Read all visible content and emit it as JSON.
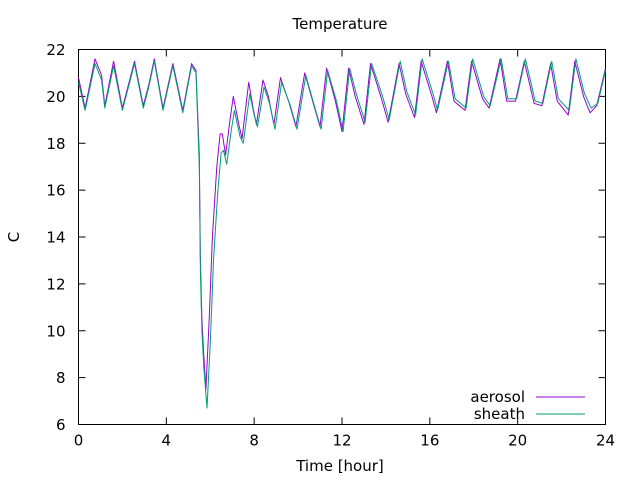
{
  "chart_data": {
    "type": "line",
    "title": "Temperature",
    "xlabel": "Time [hour]",
    "ylabel": "C",
    "xlim": [
      0,
      24
    ],
    "ylim": [
      6,
      22
    ],
    "xticks": [
      0,
      4,
      8,
      12,
      16,
      20,
      24
    ],
    "yticks": [
      6,
      8,
      10,
      12,
      14,
      16,
      18,
      20,
      22
    ],
    "grid": false,
    "legend_position": "bottom-right",
    "series": [
      {
        "name": "aerosol",
        "color": "#9400d3",
        "x": [
          0,
          0.3,
          0.75,
          1.05,
          1.2,
          1.6,
          2.0,
          2.55,
          2.95,
          3.2,
          3.45,
          3.85,
          4.3,
          4.75,
          5.15,
          5.35,
          5.5,
          5.55,
          5.62,
          5.7,
          5.8,
          5.95,
          6.1,
          6.3,
          6.45,
          6.55,
          6.7,
          6.9,
          7.05,
          7.3,
          7.45,
          7.75,
          7.95,
          8.1,
          8.4,
          8.65,
          8.9,
          9.2,
          9.6,
          9.9,
          10.3,
          10.6,
          11.0,
          11.3,
          11.7,
          12.0,
          12.3,
          12.6,
          13.0,
          13.3,
          13.8,
          14.1,
          14.6,
          14.9,
          15.3,
          15.6,
          16.1,
          16.3,
          16.8,
          17.1,
          17.6,
          17.9,
          18.4,
          18.7,
          19.2,
          19.5,
          19.9,
          20.3,
          20.75,
          21.1,
          21.5,
          21.8,
          22.3,
          22.6,
          23.0,
          23.3,
          23.6,
          24.0
        ],
        "y": [
          20.8,
          19.5,
          21.6,
          20.9,
          19.6,
          21.5,
          19.5,
          21.5,
          19.6,
          20.5,
          21.6,
          19.5,
          21.4,
          19.4,
          21.4,
          21.1,
          17.5,
          13.0,
          10.5,
          9.0,
          7.5,
          10.5,
          14.0,
          17.0,
          18.4,
          18.4,
          17.5,
          19.0,
          20.0,
          18.8,
          18.2,
          20.6,
          19.5,
          18.8,
          20.7,
          20.0,
          18.8,
          20.8,
          19.7,
          18.7,
          21.0,
          20.0,
          18.7,
          21.2,
          19.8,
          18.5,
          21.2,
          20.0,
          18.8,
          21.4,
          19.9,
          18.9,
          21.4,
          20.1,
          19.1,
          21.5,
          20.0,
          19.3,
          21.5,
          19.8,
          19.4,
          21.5,
          19.9,
          19.5,
          21.6,
          19.8,
          19.8,
          21.5,
          19.7,
          19.6,
          21.4,
          19.8,
          19.2,
          21.5,
          20.0,
          19.3,
          19.6,
          21.2
        ]
      },
      {
        "name": "sheath",
        "color": "#009e73",
        "x": [
          0,
          0.3,
          0.75,
          1.05,
          1.2,
          1.6,
          2.0,
          2.55,
          2.95,
          3.2,
          3.45,
          3.85,
          4.3,
          4.75,
          5.15,
          5.35,
          5.5,
          5.55,
          5.62,
          5.7,
          5.85,
          6.0,
          6.15,
          6.35,
          6.5,
          6.6,
          6.75,
          6.95,
          7.1,
          7.35,
          7.5,
          7.8,
          8.0,
          8.15,
          8.45,
          8.7,
          8.95,
          9.25,
          9.65,
          9.95,
          10.35,
          10.65,
          11.05,
          11.35,
          11.75,
          12.05,
          12.35,
          12.65,
          13.05,
          13.35,
          13.85,
          14.15,
          14.65,
          14.95,
          15.35,
          15.65,
          16.15,
          16.35,
          16.85,
          17.15,
          17.65,
          17.95,
          18.45,
          18.75,
          19.25,
          19.55,
          19.95,
          20.35,
          20.8,
          21.15,
          21.55,
          21.85,
          22.35,
          22.65,
          23.05,
          23.35,
          23.65,
          24.0
        ],
        "y": [
          20.6,
          19.4,
          21.4,
          20.7,
          19.5,
          21.3,
          19.4,
          21.4,
          19.5,
          20.4,
          21.5,
          19.4,
          21.3,
          19.3,
          21.3,
          21.0,
          17.0,
          12.5,
          10.0,
          8.5,
          6.7,
          9.5,
          13.0,
          16.0,
          17.6,
          17.7,
          17.1,
          18.5,
          19.4,
          18.3,
          18.0,
          20.1,
          19.2,
          18.7,
          20.4,
          19.7,
          18.6,
          20.6,
          19.6,
          18.6,
          20.9,
          19.9,
          18.6,
          21.1,
          19.8,
          18.5,
          21.2,
          20.1,
          18.9,
          21.4,
          20.0,
          19.0,
          21.5,
          20.2,
          19.2,
          21.6,
          20.1,
          19.4,
          21.5,
          19.9,
          19.5,
          21.6,
          20.0,
          19.6,
          21.6,
          19.9,
          19.9,
          21.6,
          19.8,
          19.7,
          21.5,
          19.9,
          19.4,
          21.6,
          20.1,
          19.5,
          19.7,
          21.1
        ]
      }
    ]
  }
}
